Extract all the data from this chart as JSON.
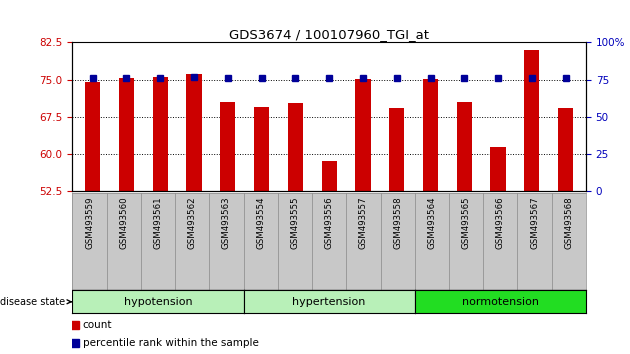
{
  "title": "GDS3674 / 100107960_TGI_at",
  "samples": [
    "GSM493559",
    "GSM493560",
    "GSM493561",
    "GSM493562",
    "GSM493563",
    "GSM493554",
    "GSM493555",
    "GSM493556",
    "GSM493557",
    "GSM493558",
    "GSM493564",
    "GSM493565",
    "GSM493566",
    "GSM493567",
    "GSM493568"
  ],
  "bar_heights": [
    74.5,
    75.3,
    75.5,
    76.2,
    70.5,
    69.5,
    70.2,
    58.5,
    75.2,
    69.2,
    75.2,
    70.5,
    61.5,
    81.0,
    69.2
  ],
  "blue_dot_pct": [
    76,
    76,
    76,
    77,
    76,
    76,
    76,
    76,
    76,
    76,
    76,
    76,
    76,
    76,
    76
  ],
  "ylim_left": [
    52.5,
    82.5
  ],
  "ylim_right": [
    0,
    100
  ],
  "yticks_left": [
    52.5,
    60.0,
    67.5,
    75.0,
    82.5
  ],
  "yticks_right": [
    0,
    25,
    50,
    75,
    100
  ],
  "bar_color": "#cc0000",
  "dot_color": "#000099",
  "background_color": "#ffffff",
  "left_tick_color": "#cc0000",
  "right_tick_color": "#0000bb",
  "grid_color": "black",
  "tick_bg_color": "#c8c8c8",
  "group_colors": [
    "#b8f0b8",
    "#b8f0b8",
    "#22dd22"
  ],
  "group_labels": [
    "hypotension",
    "hypertension",
    "normotension"
  ],
  "group_ranges": [
    [
      0,
      4
    ],
    [
      5,
      9
    ],
    [
      10,
      14
    ]
  ],
  "legend_items": [
    "count",
    "percentile rank within the sample"
  ],
  "disease_state_label": "disease state"
}
